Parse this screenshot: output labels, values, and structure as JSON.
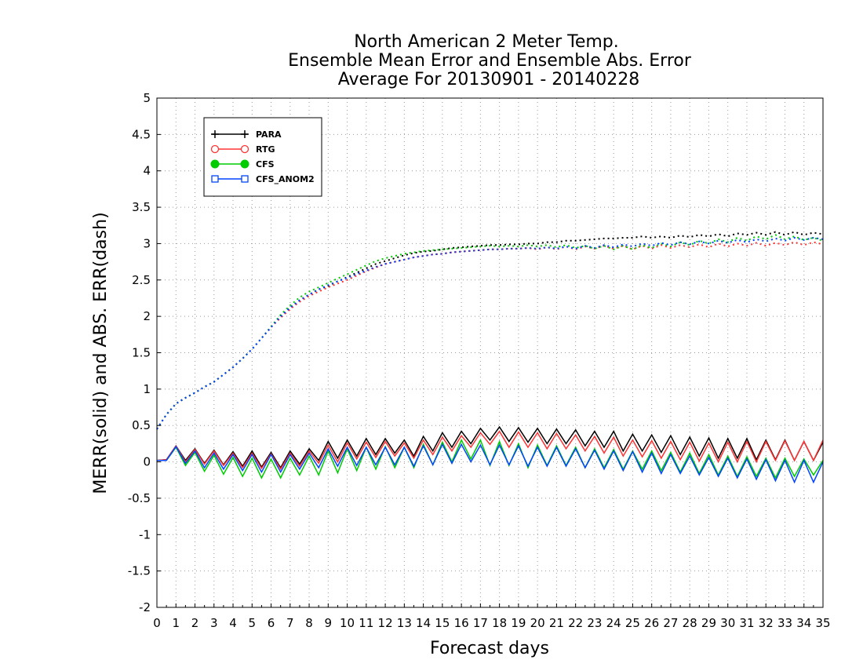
{
  "chart_data": {
    "type": "line",
    "title": [
      "North American 2 Meter Temp.",
      "Ensemble Mean Error and Ensemble Abs. Error",
      "Average For 20130901 - 20140228"
    ],
    "xlabel": "Forecast days",
    "ylabel": "MERR(solid) and ABS. ERR(dash)",
    "xlim": [
      0,
      35
    ],
    "ylim": [
      -2,
      5
    ],
    "x_ticks": [
      "0",
      "1",
      "2",
      "3",
      "4",
      "5",
      "6",
      "7",
      "8",
      "9",
      "10",
      "11",
      "12",
      "13",
      "14",
      "15",
      "16",
      "17",
      "18",
      "19",
      "20",
      "21",
      "22",
      "23",
      "24",
      "25",
      "26",
      "27",
      "28",
      "29",
      "30",
      "31",
      "32",
      "33",
      "34",
      "35"
    ],
    "y_ticks": [
      "-2",
      "-1.5",
      "-1",
      "-0.5",
      "0",
      "0.5",
      "1",
      "1.5",
      "2",
      "2.5",
      "3",
      "3.5",
      "4",
      "4.5",
      "5"
    ],
    "grid": true,
    "legend_position": "top-left",
    "x_step": 0.5,
    "series": [
      {
        "name": "PARA",
        "color": "#000000",
        "marker": "plus",
        "solid": [
          0.02,
          0.03,
          0.22,
          0.02,
          0.18,
          -0.02,
          0.16,
          -0.04,
          0.14,
          -0.06,
          0.15,
          -0.07,
          0.13,
          -0.08,
          0.15,
          -0.03,
          0.18,
          0.02,
          0.28,
          0.05,
          0.3,
          0.08,
          0.32,
          0.1,
          0.32,
          0.12,
          0.3,
          0.08,
          0.35,
          0.15,
          0.4,
          0.2,
          0.42,
          0.25,
          0.46,
          0.3,
          0.48,
          0.28,
          0.47,
          0.27,
          0.46,
          0.25,
          0.45,
          0.25,
          0.44,
          0.22,
          0.42,
          0.2,
          0.42,
          0.15,
          0.38,
          0.15,
          0.37,
          0.13,
          0.36,
          0.1,
          0.34,
          0.08,
          0.33,
          0.05,
          0.32,
          0.05,
          0.32,
          0.03,
          0.3,
          0.03,
          0.3,
          0.02,
          0.28,
          0.02,
          0.27
        ],
        "dash": [
          0.45,
          0.65,
          0.8,
          0.88,
          0.95,
          1.03,
          1.1,
          1.2,
          1.3,
          1.42,
          1.55,
          1.7,
          1.85,
          2.0,
          2.12,
          2.22,
          2.3,
          2.37,
          2.42,
          2.48,
          2.54,
          2.6,
          2.66,
          2.72,
          2.76,
          2.8,
          2.84,
          2.87,
          2.89,
          2.9,
          2.92,
          2.94,
          2.95,
          2.96,
          2.97,
          2.98,
          2.98,
          2.99,
          2.99,
          3.0,
          3.0,
          3.02,
          3.02,
          3.04,
          3.04,
          3.05,
          3.06,
          3.07,
          3.07,
          3.08,
          3.08,
          3.1,
          3.08,
          3.1,
          3.08,
          3.11,
          3.09,
          3.12,
          3.1,
          3.13,
          3.1,
          3.14,
          3.12,
          3.15,
          3.12,
          3.16,
          3.12,
          3.16,
          3.12,
          3.15,
          3.13
        ]
      },
      {
        "name": "RTG",
        "color": "#ff3333",
        "marker": "circle-open",
        "solid": [
          0.02,
          0.03,
          0.22,
          0.0,
          0.17,
          -0.03,
          0.15,
          -0.05,
          0.12,
          -0.08,
          0.12,
          -0.09,
          0.11,
          -0.1,
          0.12,
          -0.06,
          0.15,
          -0.02,
          0.23,
          0.0,
          0.26,
          0.04,
          0.27,
          0.06,
          0.28,
          0.08,
          0.26,
          0.05,
          0.3,
          0.1,
          0.34,
          0.15,
          0.36,
          0.2,
          0.4,
          0.24,
          0.42,
          0.2,
          0.41,
          0.2,
          0.4,
          0.18,
          0.39,
          0.18,
          0.37,
          0.15,
          0.35,
          0.12,
          0.34,
          0.08,
          0.3,
          0.07,
          0.29,
          0.05,
          0.28,
          0.03,
          0.27,
          0.01,
          0.26,
          0.0,
          0.27,
          0.0,
          0.28,
          0.0,
          0.28,
          0.02,
          0.29,
          0.02,
          0.28,
          0.02,
          0.3
        ],
        "dash": [
          0.45,
          0.65,
          0.8,
          0.88,
          0.95,
          1.03,
          1.1,
          1.2,
          1.3,
          1.42,
          1.55,
          1.7,
          1.85,
          1.98,
          2.1,
          2.2,
          2.28,
          2.34,
          2.4,
          2.45,
          2.5,
          2.56,
          2.62,
          2.67,
          2.72,
          2.75,
          2.78,
          2.81,
          2.83,
          2.85,
          2.86,
          2.88,
          2.89,
          2.9,
          2.91,
          2.92,
          2.92,
          2.93,
          2.93,
          2.94,
          2.92,
          2.95,
          2.92,
          2.96,
          2.92,
          2.96,
          2.93,
          2.97,
          2.93,
          2.97,
          2.92,
          2.97,
          2.93,
          2.98,
          2.94,
          2.98,
          2.95,
          2.99,
          2.95,
          3.0,
          2.96,
          3.0,
          2.97,
          3.01,
          2.97,
          3.01,
          2.98,
          3.02,
          2.98,
          3.02,
          2.99
        ]
      },
      {
        "name": "CFS",
        "color": "#00cc00",
        "marker": "circle-filled",
        "solid": [
          0.02,
          0.02,
          0.2,
          -0.05,
          0.13,
          -0.13,
          0.09,
          -0.17,
          0.06,
          -0.2,
          0.05,
          -0.22,
          0.04,
          -0.22,
          0.05,
          -0.18,
          0.08,
          -0.18,
          0.15,
          -0.15,
          0.18,
          -0.12,
          0.2,
          -0.1,
          0.21,
          -0.08,
          0.2,
          -0.08,
          0.24,
          -0.04,
          0.27,
          0.0,
          0.3,
          0.04,
          0.3,
          -0.05,
          0.28,
          -0.05,
          0.25,
          -0.08,
          0.23,
          -0.05,
          0.22,
          -0.05,
          0.2,
          -0.08,
          0.18,
          -0.08,
          0.17,
          -0.1,
          0.15,
          -0.1,
          0.15,
          -0.12,
          0.13,
          -0.14,
          0.12,
          -0.16,
          0.1,
          -0.18,
          0.08,
          -0.2,
          0.07,
          -0.2,
          0.05,
          -0.22,
          0.05,
          -0.2,
          0.04,
          -0.18,
          0.02
        ],
        "dash": [
          0.45,
          0.65,
          0.8,
          0.88,
          0.95,
          1.03,
          1.1,
          1.2,
          1.3,
          1.42,
          1.55,
          1.7,
          1.86,
          2.02,
          2.15,
          2.26,
          2.34,
          2.4,
          2.46,
          2.52,
          2.58,
          2.64,
          2.7,
          2.76,
          2.8,
          2.83,
          2.86,
          2.88,
          2.9,
          2.91,
          2.92,
          2.93,
          2.94,
          2.95,
          2.96,
          2.97,
          2.96,
          2.97,
          2.96,
          2.98,
          2.96,
          2.98,
          2.95,
          2.98,
          2.94,
          2.97,
          2.93,
          2.97,
          2.92,
          2.97,
          2.92,
          2.98,
          2.94,
          3.0,
          2.96,
          3.02,
          2.98,
          3.04,
          3.0,
          3.06,
          3.02,
          3.08,
          3.04,
          3.1,
          3.06,
          3.12,
          3.06,
          3.1,
          3.05,
          3.08,
          3.04
        ]
      },
      {
        "name": "CFS_ANOM2",
        "color": "#0044ff",
        "marker": "square-open",
        "solid": [
          0.02,
          0.02,
          0.21,
          -0.02,
          0.15,
          -0.08,
          0.12,
          -0.1,
          0.1,
          -0.12,
          0.1,
          -0.14,
          0.1,
          -0.14,
          0.1,
          -0.1,
          0.12,
          -0.08,
          0.18,
          -0.06,
          0.2,
          -0.05,
          0.2,
          -0.04,
          0.2,
          -0.04,
          0.2,
          -0.06,
          0.22,
          -0.04,
          0.24,
          -0.02,
          0.24,
          0.0,
          0.23,
          -0.04,
          0.23,
          -0.04,
          0.22,
          -0.06,
          0.2,
          -0.06,
          0.2,
          -0.06,
          0.18,
          -0.08,
          0.16,
          -0.1,
          0.15,
          -0.12,
          0.14,
          -0.14,
          0.12,
          -0.16,
          0.1,
          -0.16,
          0.08,
          -0.18,
          0.06,
          -0.2,
          0.05,
          -0.22,
          0.04,
          -0.24,
          0.03,
          -0.26,
          0.02,
          -0.28,
          0.02,
          -0.28,
          0.0
        ],
        "dash": [
          0.45,
          0.65,
          0.8,
          0.88,
          0.95,
          1.03,
          1.1,
          1.2,
          1.3,
          1.42,
          1.55,
          1.7,
          1.85,
          2.0,
          2.12,
          2.22,
          2.3,
          2.37,
          2.43,
          2.48,
          2.53,
          2.58,
          2.63,
          2.68,
          2.72,
          2.75,
          2.78,
          2.81,
          2.83,
          2.85,
          2.86,
          2.88,
          2.89,
          2.9,
          2.91,
          2.92,
          2.92,
          2.93,
          2.93,
          2.94,
          2.93,
          2.95,
          2.93,
          2.96,
          2.93,
          2.97,
          2.94,
          2.98,
          2.95,
          2.99,
          2.96,
          3.0,
          2.97,
          3.01,
          2.98,
          3.02,
          2.99,
          3.03,
          3.0,
          3.04,
          3.01,
          3.05,
          3.02,
          3.06,
          3.03,
          3.07,
          3.04,
          3.08,
          3.05,
          3.08,
          3.06
        ]
      }
    ]
  }
}
